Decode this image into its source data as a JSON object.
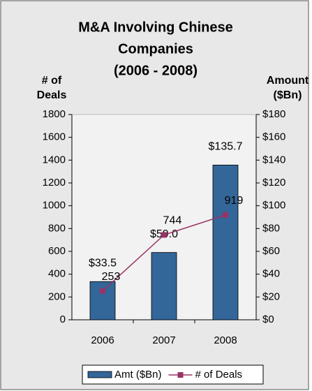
{
  "chart_data": {
    "type": "bar",
    "title": [
      "M&A Involving Chinese",
      "Companies",
      "(2006 - 2008)"
    ],
    "y_label": [
      "# of",
      "Deals"
    ],
    "y2_label": [
      "Amount",
      "($Bn)"
    ],
    "categories": [
      "2006",
      "2007",
      "2008"
    ],
    "series": [
      {
        "name": "Amt ($Bn)",
        "type": "bar",
        "axis": "y2",
        "color": "#336699",
        "values": [
          33.5,
          59.0,
          135.7
        ],
        "value_labels": [
          "$33.5",
          "$59.0",
          "$135.7"
        ]
      },
      {
        "name": "# of Deals",
        "type": "line",
        "axis": "y",
        "color": "#993366",
        "values": [
          253,
          744,
          919
        ]
      }
    ],
    "ylim": [
      0,
      1800
    ],
    "yticks": [
      0,
      200,
      400,
      600,
      800,
      1000,
      1200,
      1400,
      1600,
      1800
    ],
    "y2lim": [
      0,
      180
    ],
    "y2ticks": [
      {
        "value": 0,
        "label": "$0"
      },
      {
        "value": 20,
        "label": "$20"
      },
      {
        "value": 40,
        "label": "$40"
      },
      {
        "value": 60,
        "label": "$60"
      },
      {
        "value": 80,
        "label": "$80"
      },
      {
        "value": 100,
        "label": "$100"
      },
      {
        "value": 120,
        "label": "$120"
      },
      {
        "value": 140,
        "label": "$140"
      },
      {
        "value": 160,
        "label": "$160"
      },
      {
        "value": 180,
        "label": "$180"
      }
    ],
    "legend": "bottom"
  }
}
